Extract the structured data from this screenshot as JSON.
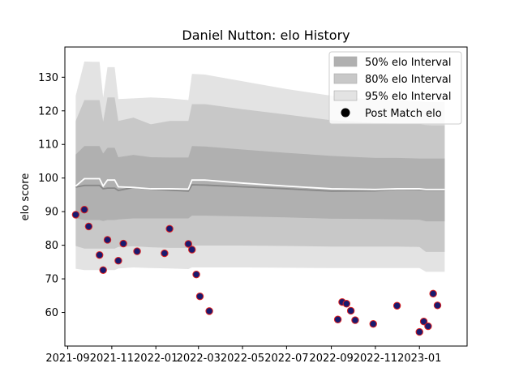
{
  "chart_data": {
    "type": "scatter",
    "title": "Daniel Nutton: elo History",
    "xlabel": "",
    "ylabel": "elo score",
    "xlim": [
      "2021-08-28",
      "2023-03-08"
    ],
    "ylim": [
      50,
      139
    ],
    "x_ticks": [
      "2021-09",
      "2021-11",
      "2022-01",
      "2022-03",
      "2022-05",
      "2022-07",
      "2022-09",
      "2022-11",
      "2023-01"
    ],
    "y_ticks": [
      60,
      70,
      80,
      90,
      100,
      110,
      120,
      130
    ],
    "grid": false,
    "legend_position": "top-right",
    "legend": [
      {
        "label": "50% elo Interval",
        "kind": "band",
        "color": "#b0b0b0"
      },
      {
        "label": "80% elo Interval",
        "kind": "band",
        "color": "#c8c8c8"
      },
      {
        "label": "95% elo Interval",
        "kind": "band",
        "color": "#e3e3e3"
      },
      {
        "label": "Post Match elo",
        "kind": "marker",
        "color": "#000000"
      }
    ],
    "colors": {
      "band50": "#b0b0b0",
      "band80": "#c8c8c8",
      "band95": "#e3e3e3",
      "mean_line": "#888888",
      "median_line": "#ffffff",
      "marker_fill": "#1a1a6e",
      "marker_edge": "#e0201f"
    },
    "bands": {
      "dates": [
        "2021-09-12",
        "2021-09-24",
        "2021-10-05",
        "2021-10-15",
        "2021-10-20",
        "2021-10-26",
        "2021-11-05",
        "2021-11-10",
        "2021-12-01",
        "2021-12-25",
        "2022-01-20",
        "2022-02-15",
        "2022-02-20",
        "2022-03-10",
        "2022-05-01",
        "2022-07-01",
        "2022-09-01",
        "2022-11-01",
        "2022-12-01",
        "2023-01-01",
        "2023-01-10",
        "2023-01-20",
        "2023-02-05"
      ],
      "lo95": [
        73.0,
        72.6,
        72.6,
        72.6,
        72.3,
        72.6,
        72.6,
        73.1,
        73.4,
        73.2,
        73.1,
        72.9,
        73.4,
        73.4,
        73.4,
        73.3,
        73.2,
        73.2,
        73.2,
        73.2,
        72.1,
        72.1,
        72.1
      ],
      "hi95": [
        124.5,
        134.7,
        134.6,
        134.6,
        124.0,
        133.0,
        133.0,
        123.5,
        123.7,
        124.0,
        123.7,
        123.2,
        131.0,
        130.8,
        128.8,
        126.5,
        124.5,
        123.2,
        123.2,
        122.8,
        122.7,
        122.7,
        122.7
      ],
      "lo80": [
        79.8,
        79.0,
        79.0,
        79.0,
        79.0,
        79.0,
        79.0,
        79.5,
        79.7,
        79.4,
        79.2,
        79.2,
        79.9,
        79.9,
        79.9,
        79.8,
        79.6,
        79.6,
        79.6,
        79.5,
        78.0,
        78.0,
        78.0
      ],
      "hi80": [
        117.0,
        123.2,
        123.2,
        123.2,
        116.8,
        124.0,
        124.0,
        117.0,
        118.0,
        116.0,
        117.0,
        117.0,
        122.0,
        122.0,
        120.5,
        118.9,
        117.2,
        116.4,
        116.2,
        116.0,
        115.8,
        115.7,
        115.7
      ],
      "lo50": [
        88.0,
        87.5,
        87.5,
        87.5,
        87.2,
        87.5,
        87.5,
        87.7,
        88.0,
        88.0,
        88.0,
        88.0,
        88.8,
        88.8,
        88.6,
        88.3,
        87.9,
        87.8,
        87.7,
        87.6,
        87.1,
        87.1,
        87.1
      ],
      "hi50": [
        107.0,
        109.5,
        109.5,
        109.5,
        107.3,
        109.0,
        109.0,
        106.2,
        106.9,
        106.2,
        106.1,
        106.1,
        109.5,
        109.4,
        108.5,
        107.5,
        106.6,
        106.0,
        106.0,
        105.8,
        105.8,
        105.8,
        105.8
      ],
      "mean": [
        97.3,
        97.8,
        97.8,
        97.8,
        96.8,
        97.0,
        97.0,
        96.3,
        97.2,
        96.7,
        96.4,
        96.1,
        98.0,
        97.9,
        97.4,
        96.8,
        96.1,
        96.2,
        96.7,
        96.6,
        96.4,
        96.4,
        96.4
      ],
      "median": [
        97.6,
        99.8,
        99.8,
        99.8,
        97.6,
        99.4,
        99.4,
        97.4,
        97.2,
        96.8,
        96.8,
        96.7,
        99.4,
        99.4,
        98.5,
        97.6,
        96.8,
        96.6,
        96.8,
        96.8,
        96.6,
        96.6,
        96.6
      ]
    },
    "points": [
      {
        "x": "2021-09-12",
        "y": 89.1
      },
      {
        "x": "2021-09-24",
        "y": 90.6
      },
      {
        "x": "2021-09-30",
        "y": 85.6
      },
      {
        "x": "2021-10-15",
        "y": 77.1
      },
      {
        "x": "2021-10-20",
        "y": 72.6
      },
      {
        "x": "2021-10-26",
        "y": 81.6
      },
      {
        "x": "2021-11-10",
        "y": 75.4
      },
      {
        "x": "2021-11-17",
        "y": 80.5
      },
      {
        "x": "2021-12-06",
        "y": 78.2
      },
      {
        "x": "2022-01-13",
        "y": 77.6
      },
      {
        "x": "2022-01-20",
        "y": 84.9
      },
      {
        "x": "2022-02-15",
        "y": 80.4
      },
      {
        "x": "2022-02-20",
        "y": 78.7
      },
      {
        "x": "2022-02-26",
        "y": 71.3
      },
      {
        "x": "2022-03-03",
        "y": 64.8
      },
      {
        "x": "2022-03-16",
        "y": 60.4
      },
      {
        "x": "2022-09-10",
        "y": 57.9
      },
      {
        "x": "2022-09-16",
        "y": 63.1
      },
      {
        "x": "2022-09-22",
        "y": 62.6
      },
      {
        "x": "2022-09-28",
        "y": 60.5
      },
      {
        "x": "2022-10-04",
        "y": 57.7
      },
      {
        "x": "2022-10-29",
        "y": 56.6
      },
      {
        "x": "2022-12-01",
        "y": 62.0
      },
      {
        "x": "2023-01-01",
        "y": 54.2
      },
      {
        "x": "2023-01-07",
        "y": 57.3
      },
      {
        "x": "2023-01-13",
        "y": 55.9
      },
      {
        "x": "2023-01-20",
        "y": 65.6
      },
      {
        "x": "2023-01-26",
        "y": 62.1
      }
    ]
  }
}
